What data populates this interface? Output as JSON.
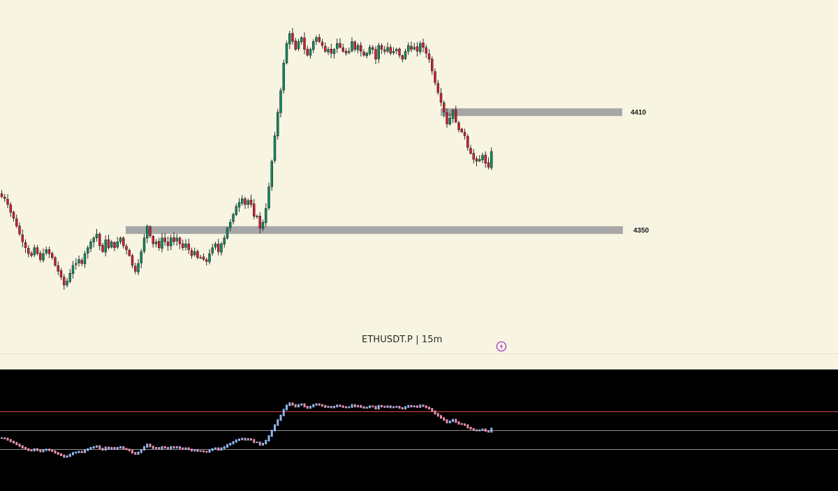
{
  "chart_data": [
    {
      "type": "candlestick",
      "symbol_title": "ETHUSDT.P | 15m",
      "symbol": "ETHUSDT.P",
      "timeframe": "15m",
      "colors": {
        "background": "#f8f4e2",
        "up": "#0f8a5f",
        "down": "#d01e32",
        "wick": "#2b2b2b",
        "zone": "#a7a7a7",
        "bolt_icon": "#9b38c8"
      },
      "price_range": [
        4300,
        4460
      ],
      "levels": [
        {
          "label": "4410",
          "price": 4410
        },
        {
          "label": "4350",
          "price": 4350
        }
      ],
      "closes": [
        4367,
        4366,
        4363,
        4359,
        4356,
        4352,
        4348,
        4344,
        4341,
        4338,
        4337,
        4341,
        4338,
        4335,
        4338,
        4340,
        4338,
        4336,
        4332,
        4329,
        4326,
        4322,
        4324,
        4328,
        4332,
        4333,
        4335,
        4333,
        4338,
        4341,
        4344,
        4346,
        4348,
        4342,
        4339,
        4345,
        4341,
        4344,
        4341,
        4344,
        4346,
        4342,
        4340,
        4337,
        4332,
        4329,
        4333,
        4339,
        4346,
        4352,
        4347,
        4343,
        4344,
        4341,
        4346,
        4344,
        4342,
        4346,
        4344,
        4346,
        4343,
        4341,
        4343,
        4340,
        4337,
        4339,
        4336,
        4336,
        4335,
        4334,
        4338,
        4341,
        4343,
        4339,
        4343,
        4346,
        4351,
        4354,
        4358,
        4362,
        4364,
        4366,
        4363,
        4365,
        4363,
        4357,
        4357,
        4351,
        4354,
        4361,
        4372,
        4385,
        4398,
        4410,
        4421,
        4435,
        4445,
        4450,
        4446,
        4442,
        4446,
        4448,
        4442,
        4439,
        4442,
        4446,
        4448,
        4446,
        4444,
        4441,
        4442,
        4440,
        4442,
        4445,
        4443,
        4441,
        4440,
        4441,
        4446,
        4442,
        4444,
        4441,
        4439,
        4440,
        4443,
        4442,
        4437,
        4444,
        4442,
        4441,
        4443,
        4440,
        4441,
        4442,
        4439,
        4437,
        4441,
        4444,
        4442,
        4443,
        4441,
        4445,
        4443,
        4440,
        4437,
        4431,
        4425,
        4420,
        4415,
        4410,
        4404,
        4407,
        4411,
        4405,
        4401,
        4400,
        4398,
        4392,
        4389,
        4386,
        4385,
        4386,
        4388,
        4384,
        4382,
        4390
      ],
      "oscillator": {
        "background": "#000000",
        "range": [
          0,
          100
        ],
        "levels": [
          70,
          50,
          30
        ],
        "level_colors": [
          "#d94b4b",
          "#8f8f8f",
          "#8f8f8f"
        ],
        "up_color": "#8fb6ef",
        "down_color": "#e890a9"
      }
    }
  ]
}
